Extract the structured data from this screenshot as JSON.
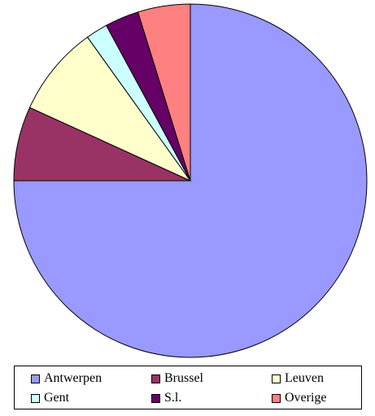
{
  "chart_data": {
    "type": "pie",
    "title": "",
    "start_angle_deg": 0,
    "direction": "clockwise",
    "legend_position": "bottom",
    "slices": [
      {
        "label": "Antwerpen",
        "value": 75.0,
        "color": "#9999ff"
      },
      {
        "label": "Brussel",
        "value": 6.8,
        "color": "#993366"
      },
      {
        "label": "Leuven",
        "value": 8.3,
        "color": "#ffffcc"
      },
      {
        "label": "Gent",
        "value": 2.0,
        "color": "#ccffff"
      },
      {
        "label": "S.l.",
        "value": 3.1,
        "color": "#660066"
      },
      {
        "label": "Overige",
        "value": 4.8,
        "color": "#ff8080"
      }
    ]
  }
}
